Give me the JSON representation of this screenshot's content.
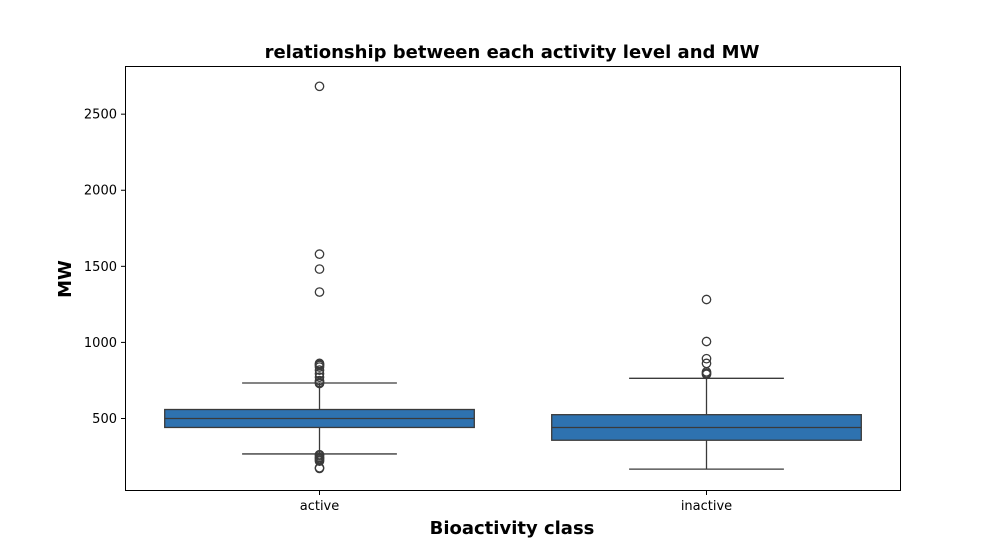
{
  "chart_data": {
    "type": "box",
    "title": "relationship between each activity level and MW",
    "xlabel": "Bioactivity class",
    "ylabel": "MW",
    "categories": [
      "active",
      "inactive"
    ],
    "y_ticks": [
      500,
      1000,
      1500,
      2000,
      2500
    ],
    "ylim": [
      30,
      2810
    ],
    "grid": false,
    "legend": "none",
    "box_color": "#2e72b0",
    "line_color": "#3a3a3a",
    "boxes": [
      {
        "category": "active",
        "whisker_low": 267,
        "q1": 441,
        "median": 500,
        "q3": 559,
        "whisker_high": 733,
        "outliers": [
          2683,
          1580,
          1482,
          1331,
          862,
          855,
          849,
          838,
          818,
          795,
          772,
          749,
          737,
          730,
          262,
          254,
          244,
          236,
          228,
          220,
          176,
          172
        ]
      },
      {
        "category": "inactive",
        "whisker_low": 167,
        "q1": 357,
        "median": 441,
        "q3": 525,
        "whisker_high": 764,
        "outliers": [
          1282,
          1006,
          893,
          862,
          806,
          797,
          790
        ]
      }
    ]
  }
}
